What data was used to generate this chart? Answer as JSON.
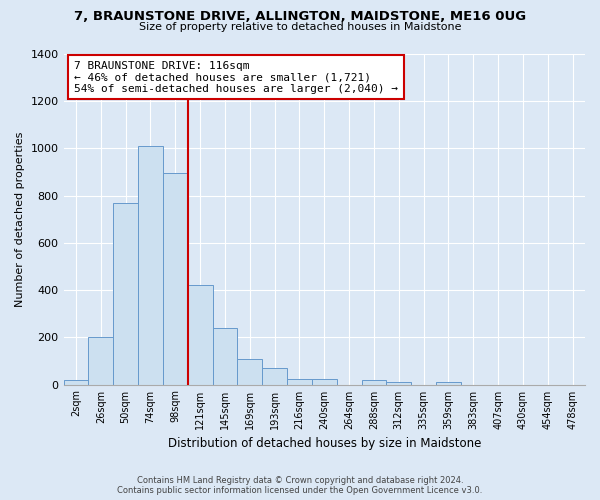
{
  "title": "7, BRAUNSTONE DRIVE, ALLINGTON, MAIDSTONE, ME16 0UG",
  "subtitle": "Size of property relative to detached houses in Maidstone",
  "xlabel": "Distribution of detached houses by size in Maidstone",
  "ylabel": "Number of detached properties",
  "bar_labels": [
    "2sqm",
    "26sqm",
    "50sqm",
    "74sqm",
    "98sqm",
    "121sqm",
    "145sqm",
    "169sqm",
    "193sqm",
    "216sqm",
    "240sqm",
    "264sqm",
    "288sqm",
    "312sqm",
    "335sqm",
    "359sqm",
    "383sqm",
    "407sqm",
    "430sqm",
    "454sqm",
    "478sqm"
  ],
  "bar_values": [
    20,
    200,
    770,
    1010,
    895,
    420,
    240,
    110,
    70,
    25,
    25,
    0,
    20,
    10,
    0,
    10,
    0,
    0,
    0,
    0,
    0
  ],
  "bar_color": "#cce0f0",
  "bar_edge_color": "#6699cc",
  "reference_line_color": "#cc0000",
  "annotation_text": "7 BRAUNSTONE DRIVE: 116sqm\n← 46% of detached houses are smaller (1,721)\n54% of semi-detached houses are larger (2,040) →",
  "annotation_box_facecolor": "#ffffff",
  "annotation_box_edge": "#cc0000",
  "ylim": [
    0,
    1400
  ],
  "yticks": [
    0,
    200,
    400,
    600,
    800,
    1000,
    1200,
    1400
  ],
  "footer_line1": "Contains HM Land Registry data © Crown copyright and database right 2024.",
  "footer_line2": "Contains public sector information licensed under the Open Government Licence v3.0.",
  "bg_color": "#dce8f5",
  "plot_bg_color": "#dce8f5",
  "grid_color": "#ffffff"
}
